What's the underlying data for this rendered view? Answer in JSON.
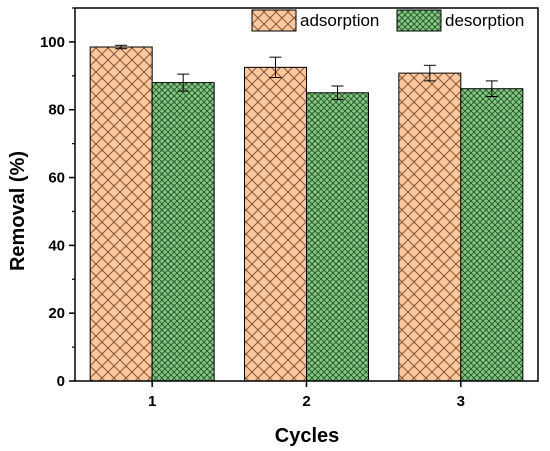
{
  "chart_data": {
    "type": "bar",
    "xlabel": "Cycles",
    "ylabel": "Removal (%)",
    "categories": [
      "1",
      "2",
      "3"
    ],
    "ylim": [
      0,
      110
    ],
    "yticks": [
      0,
      20,
      40,
      60,
      80,
      100
    ],
    "legend_position": "top-right",
    "grid": false,
    "series": [
      {
        "name": "adsorption",
        "values": [
          98.5,
          92.5,
          90.8
        ],
        "errors": [
          0.5,
          3.0,
          2.3
        ],
        "fill": "#fbc79c",
        "hatch": "#7a4a30",
        "pattern": "crosshatch"
      },
      {
        "name": "desorption",
        "values": [
          88.0,
          85.0,
          86.2
        ],
        "errors": [
          2.5,
          2.0,
          2.3
        ],
        "fill": "#85c785",
        "hatch": "#1e4a1e",
        "pattern": "fine-crosshatch"
      }
    ]
  }
}
